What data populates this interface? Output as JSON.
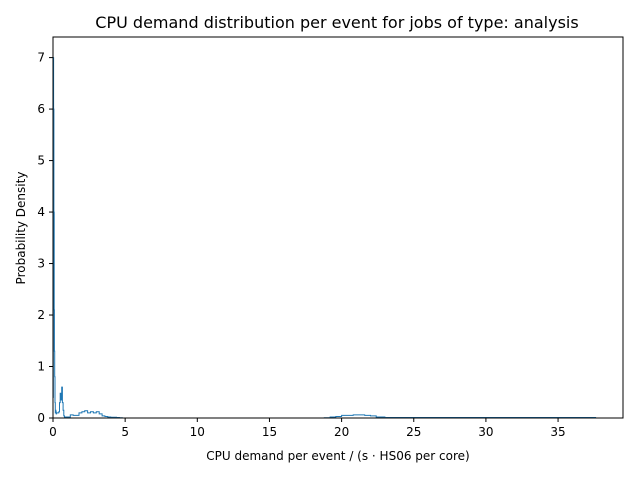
{
  "chart_data": {
    "type": "line",
    "title": "CPU demand distribution per event for jobs of type: analysis",
    "xlabel": "CPU demand per event / (s · HS06 per core)",
    "ylabel": "Probability Density",
    "xlim": [
      0,
      39.5
    ],
    "ylim": [
      0,
      7.4
    ],
    "xticks": [
      0,
      5,
      10,
      15,
      20,
      25,
      30,
      35
    ],
    "yticks": [
      0,
      1,
      2,
      3,
      4,
      5,
      6,
      7
    ],
    "grid": false,
    "legend": "none",
    "series": [
      {
        "style": "step",
        "color": "#1f77b4",
        "x": [
          0.0,
          0.02,
          0.04,
          0.06,
          0.08,
          0.1,
          0.12,
          0.14,
          0.16,
          0.18,
          0.2,
          0.22,
          0.25,
          0.3,
          0.35,
          0.4,
          0.45,
          0.5,
          0.55,
          0.6,
          0.65,
          0.7,
          0.75,
          0.8,
          0.9,
          1.0,
          1.2,
          1.4,
          1.6,
          1.8,
          2.0,
          2.2,
          2.4,
          2.6,
          2.8,
          3.0,
          3.2,
          3.4,
          3.6,
          3.8,
          4.0,
          4.2,
          4.4,
          4.6,
          4.8,
          5.5,
          10.0,
          15.0,
          18.8,
          19.2,
          19.6,
          20.0,
          20.4,
          20.8,
          21.2,
          21.6,
          22.0,
          22.4,
          23.0,
          25.0,
          30.0,
          35.0,
          37.6
        ],
        "y": [
          0.4,
          7.0,
          6.0,
          4.0,
          2.1,
          1.3,
          0.8,
          0.3,
          0.1,
          0.15,
          0.12,
          0.08,
          0.1,
          0.1,
          0.1,
          0.12,
          0.3,
          0.48,
          0.35,
          0.6,
          0.3,
          0.15,
          0.04,
          0.02,
          0.02,
          0.02,
          0.06,
          0.05,
          0.05,
          0.1,
          0.12,
          0.14,
          0.1,
          0.12,
          0.1,
          0.12,
          0.08,
          0.04,
          0.03,
          0.02,
          0.015,
          0.015,
          0.01,
          0.005,
          0.0,
          0.0,
          0.0,
          0.0,
          0.005,
          0.02,
          0.03,
          0.05,
          0.05,
          0.06,
          0.06,
          0.05,
          0.04,
          0.02,
          0.01,
          0.01,
          0.01,
          0.01,
          0.0
        ]
      }
    ]
  }
}
